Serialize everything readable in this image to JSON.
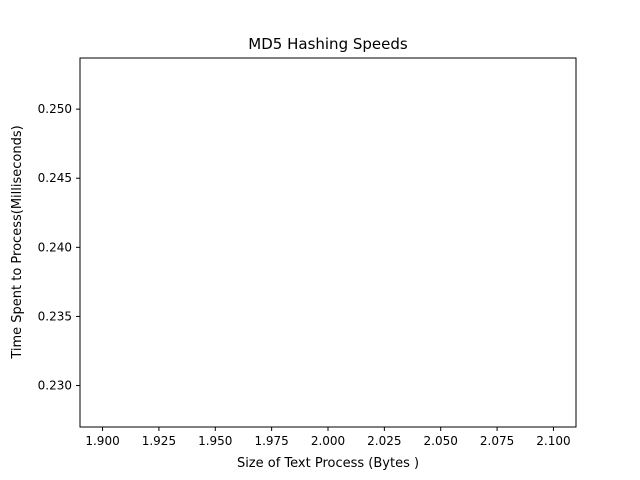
{
  "chart_data": {
    "type": "line",
    "title": "MD5 Hashing Speeds",
    "xlabel": "Size of Text Process (Bytes )",
    "ylabel": "Time Spent to Process(Milliseconds)",
    "xlim": [
      1.89,
      2.11
    ],
    "ylim": [
      0.227,
      0.2537
    ],
    "x_ticks": [
      1.9,
      1.925,
      1.95,
      1.975,
      2.0,
      2.025,
      2.05,
      2.075,
      2.1
    ],
    "x_tick_labels": [
      "1.900",
      "1.925",
      "1.950",
      "1.975",
      "2.000",
      "2.025",
      "2.050",
      "2.075",
      "2.100"
    ],
    "y_ticks": [
      0.23,
      0.235,
      0.24,
      0.245,
      0.25
    ],
    "y_tick_labels": [
      "0.230",
      "0.235",
      "0.240",
      "0.245",
      "0.250"
    ],
    "series": [],
    "grid": false
  },
  "colors": {
    "background": "#ffffff",
    "axes": "#000000"
  }
}
